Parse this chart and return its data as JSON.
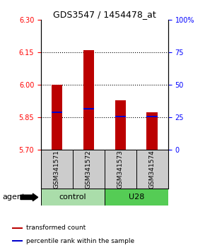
{
  "title": "GDS3547 / 1454478_at",
  "samples": [
    "GSM341571",
    "GSM341572",
    "GSM341573",
    "GSM341574"
  ],
  "bar_bottoms": [
    5.7,
    5.7,
    5.7,
    5.7
  ],
  "bar_tops": [
    6.0,
    6.16,
    5.93,
    5.875
  ],
  "percentile_values": [
    5.875,
    5.89,
    5.855,
    5.855
  ],
  "ylim": [
    5.7,
    6.3
  ],
  "yticks_left": [
    5.7,
    5.85,
    6.0,
    6.15,
    6.3
  ],
  "yticks_right": [
    0,
    25,
    50,
    75,
    100
  ],
  "gridlines": [
    5.85,
    6.0,
    6.15
  ],
  "bar_color": "#bb0000",
  "percentile_color": "#0000cc",
  "group_colors": {
    "control": "#aaddaa",
    "U28": "#55cc55"
  },
  "group_spans": [
    [
      "control",
      0,
      1
    ],
    [
      "U28",
      2,
      3
    ]
  ],
  "legend_items": [
    {
      "label": "transformed count",
      "color": "#bb0000"
    },
    {
      "label": "percentile rank within the sample",
      "color": "#0000cc"
    }
  ],
  "agent_label": "agent",
  "bar_width": 0.35,
  "sample_box_color": "#cccccc",
  "n": 4
}
